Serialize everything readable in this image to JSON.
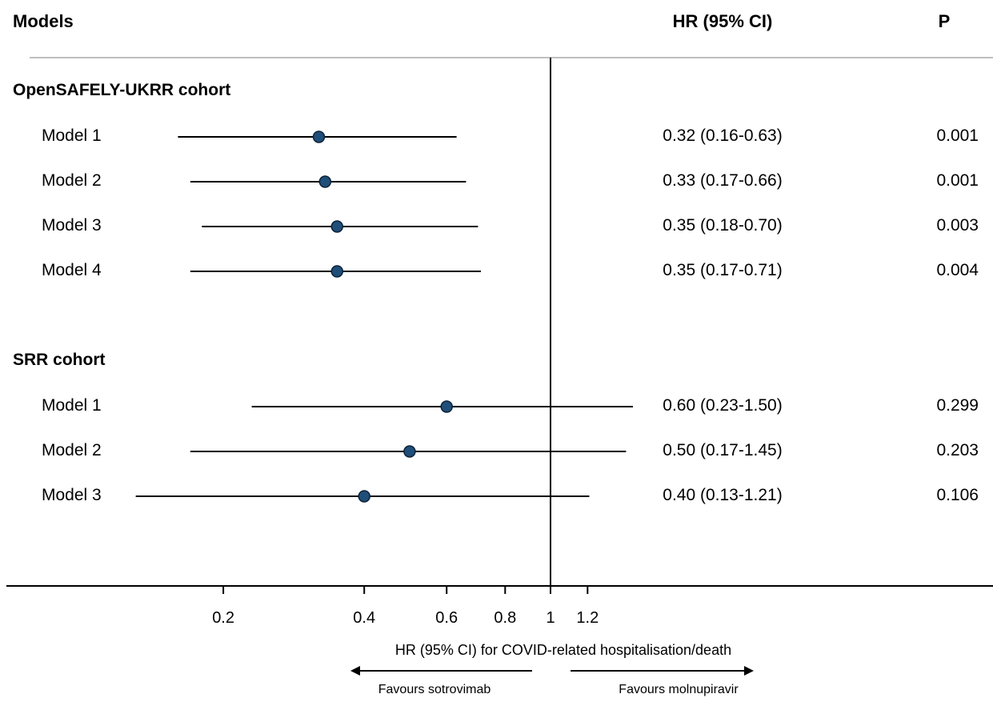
{
  "header": {
    "models_label": "Models",
    "hr_label": "HR (95%  CI)",
    "p_label": "P"
  },
  "chart_data": {
    "type": "forest",
    "scale": "log",
    "reference_line": 1,
    "xlabel": "HR (95% CI) for COVID-related hospitalisation/death",
    "xticks": [
      0.2,
      0.4,
      0.6,
      0.8,
      1,
      1.2
    ],
    "xtick_labels": [
      "0.2",
      "0.4",
      "0.6",
      "0.8",
      "1",
      "1.2"
    ],
    "left_arrow_label": "Favours sotrovimab",
    "right_arrow_label": "Favours molnupiravir",
    "marker_color": "#1f4e79",
    "groups": [
      {
        "name": "OpenSAFELY-UKRR cohort",
        "rows": [
          {
            "label": "Model 1",
            "hr": 0.32,
            "lo": 0.16,
            "hi": 0.63,
            "text": "0.32 (0.16-0.63)",
            "p": "0.001"
          },
          {
            "label": "Model 2",
            "hr": 0.33,
            "lo": 0.17,
            "hi": 0.66,
            "text": "0.33 (0.17-0.66)",
            "p": "0.001"
          },
          {
            "label": "Model 3",
            "hr": 0.35,
            "lo": 0.18,
            "hi": 0.7,
            "text": "0.35 (0.18-0.70)",
            "p": "0.003"
          },
          {
            "label": "Model 4",
            "hr": 0.35,
            "lo": 0.17,
            "hi": 0.71,
            "text": "0.35 (0.17-0.71)",
            "p": "0.004"
          }
        ]
      },
      {
        "name": "SRR cohort",
        "rows": [
          {
            "label": "Model 1",
            "hr": 0.6,
            "lo": 0.23,
            "hi": 1.5,
            "text": "0.60 (0.23-1.50)",
            "p": "0.299"
          },
          {
            "label": "Model 2",
            "hr": 0.5,
            "lo": 0.17,
            "hi": 1.45,
            "text": "0.50 (0.17-1.45)",
            "p": "0.203"
          },
          {
            "label": "Model 3",
            "hr": 0.4,
            "lo": 0.13,
            "hi": 1.21,
            "text": "0.40 (0.13-1.21)",
            "p": "0.106"
          }
        ]
      }
    ]
  }
}
